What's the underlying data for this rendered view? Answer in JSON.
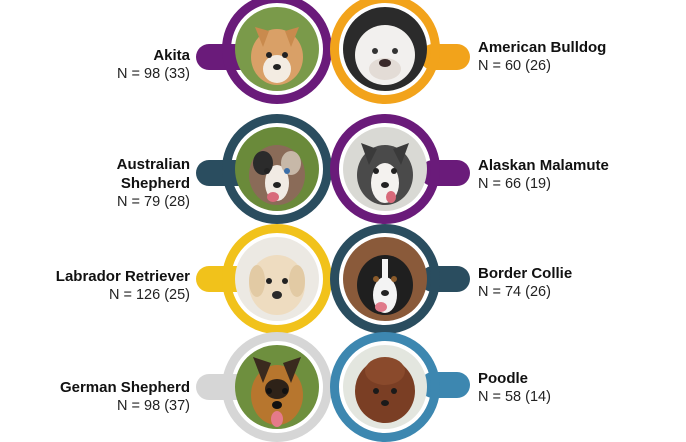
{
  "breeds": [
    {
      "name": "Akita",
      "count": "N = 98 (33)",
      "color": "#6a1b7a",
      "side": "left",
      "photo_icon": "akita-dog-icon"
    },
    {
      "name": "American Bulldog",
      "count": "N = 60 (26)",
      "color": "#f2a31b",
      "side": "right",
      "photo_icon": "american-bulldog-dog-icon"
    },
    {
      "name": "Australian Shepherd",
      "name_lines": [
        "Australian",
        "Shepherd"
      ],
      "count": "N = 79 (28)",
      "color": "#2a4d5f",
      "side": "left",
      "photo_icon": "australian-shepherd-dog-icon"
    },
    {
      "name": "Alaskan Malamute",
      "count": "N = 66 (19)",
      "color": "#6a1b7a",
      "side": "right",
      "photo_icon": "alaskan-malamute-dog-icon"
    },
    {
      "name": "Labrador Retriever",
      "count": "N = 126 (25)",
      "color": "#f1c21b",
      "side": "left",
      "photo_icon": "labrador-retriever-dog-icon"
    },
    {
      "name": "Border Collie",
      "count": "N = 74 (26)",
      "color": "#2a4d5f",
      "side": "right",
      "photo_icon": "border-collie-dog-icon"
    },
    {
      "name": "German Shepherd",
      "count": "N = 98 (37)",
      "color": "#d6d6d6",
      "side": "left",
      "photo_icon": "german-shepherd-dog-icon"
    },
    {
      "name": "Poodle",
      "count": "N = 58 (14)",
      "color": "#3d87b0",
      "side": "right",
      "photo_icon": "poodle-dog-icon"
    }
  ]
}
